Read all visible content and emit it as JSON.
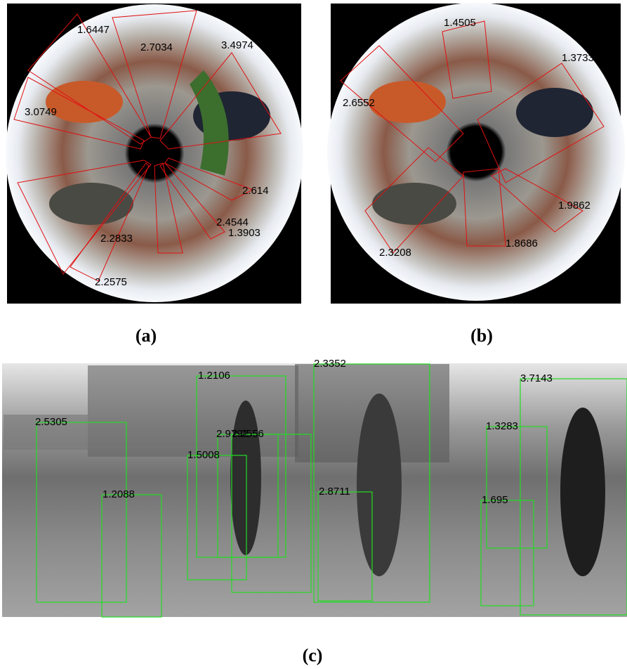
{
  "panels": [
    {
      "label": "(a)",
      "detections": [
        "1.6447",
        "2.7034",
        "3.4974",
        "3.0749",
        "2.614",
        "2.4544",
        "1.3903",
        "2.2833",
        "2.2575"
      ]
    },
    {
      "label": "(b)",
      "detections": [
        "1.4505",
        "1.3733",
        "2.6552",
        "1.9862",
        "1.8686",
        "2.3208"
      ]
    },
    {
      "label": "(c)",
      "detections": [
        "2.5305",
        "1.2106",
        "2.3352",
        "3.7143",
        "2.9792",
        "2.2556",
        "1.5008",
        "1.3283",
        "1.2088",
        "2.8711",
        "1.695"
      ]
    }
  ]
}
